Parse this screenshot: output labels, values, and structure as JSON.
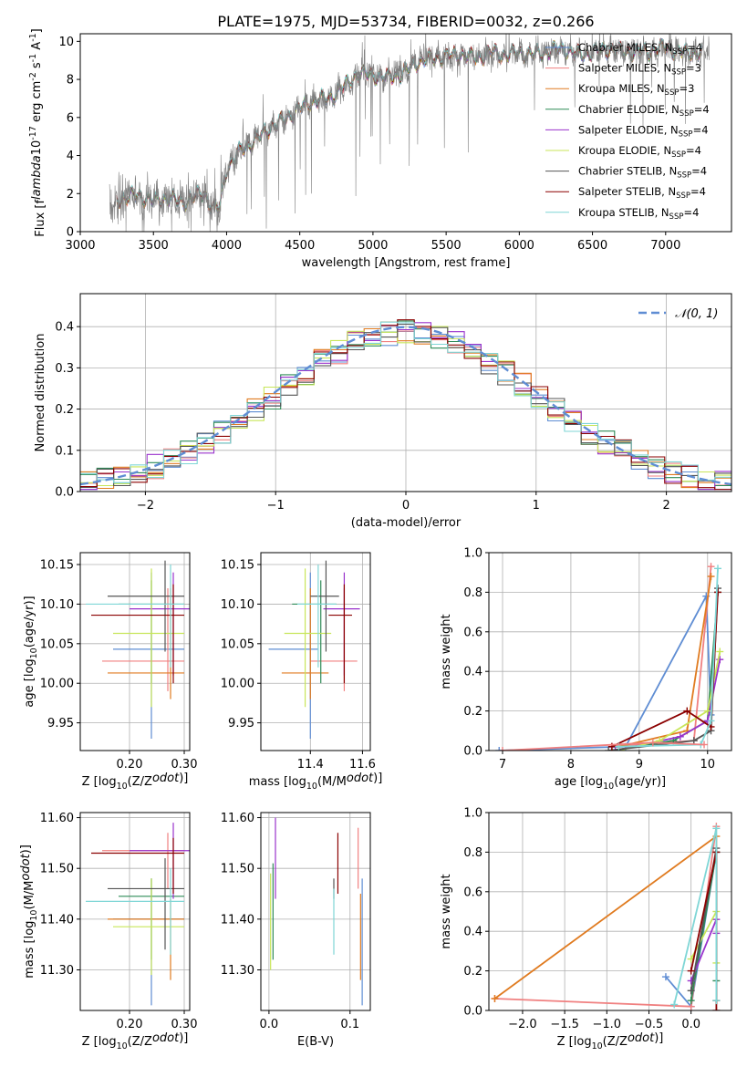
{
  "figure": {
    "title": "PLATE=1975, MJD=53734, FIBERID=0032, z=0.266"
  },
  "colors": {
    "Chabrier MILES": "#5f8dd3",
    "Salpeter MILES": "#f08080",
    "Kroupa MILES": "#e07b20",
    "Chabrier ELODIE": "#2e8b57",
    "Salpeter ELODIE": "#9932cc",
    "Kroupa ELODIE": "#c8e65a",
    "Chabrier STELIB": "#555555",
    "Salpeter STELIB": "#8b0000",
    "Kroupa STELIB": "#7fd6d6",
    "data": "#808080",
    "norm": "#5f8dd3",
    "grid": "#b0b0b0"
  },
  "chart_data": [
    {
      "id": "spectrum",
      "type": "line",
      "xlabel": "wavelength [Angstrom, rest frame]",
      "ylabel": "Flux [f$_\\lambda$10$^{-17}$ erg cm$^{-2}$ s$^{-1}$ A$^{-1}$]",
      "xlim": [
        3000,
        7450
      ],
      "ylim": [
        0,
        10.4
      ],
      "xticks": [
        3000,
        3500,
        4000,
        4500,
        5000,
        5500,
        6000,
        6500,
        7000
      ],
      "yticks": [
        0,
        2,
        4,
        6,
        8,
        10
      ],
      "grid": false,
      "legend_position": "top-right",
      "legend": [
        {
          "label": "Chabrier MILES, N",
          "sub": "SSP",
          "tail": "=4",
          "model": "Chabrier MILES"
        },
        {
          "label": "Salpeter MILES, N",
          "sub": "SSP",
          "tail": "=3",
          "model": "Salpeter MILES"
        },
        {
          "label": "Kroupa MILES, N",
          "sub": "SSP",
          "tail": "=3",
          "model": "Kroupa MILES"
        },
        {
          "label": "Chabrier ELODIE, N",
          "sub": "SSP",
          "tail": "=4",
          "model": "Chabrier ELODIE"
        },
        {
          "label": "Salpeter ELODIE, N",
          "sub": "SSP",
          "tail": "=4",
          "model": "Salpeter ELODIE"
        },
        {
          "label": "Kroupa ELODIE, N",
          "sub": "SSP",
          "tail": "=4",
          "model": "Kroupa ELODIE"
        },
        {
          "label": "Chabrier STELIB, N",
          "sub": "SSP",
          "tail": "=4",
          "model": "Chabrier STELIB"
        },
        {
          "label": "Salpeter STELIB, N",
          "sub": "SSP",
          "tail": "=4",
          "model": "Salpeter STELIB"
        },
        {
          "label": "Kroupa STELIB, N",
          "sub": "SSP",
          "tail": "=4",
          "model": "Kroupa STELIB"
        }
      ],
      "continuum": {
        "x": [
          3200,
          3300,
          3400,
          3500,
          3600,
          3700,
          3800,
          3850,
          3900,
          3950,
          4000,
          4100,
          4200,
          4300,
          4400,
          4500,
          4600,
          4700,
          4800,
          4900,
          5000,
          5100,
          5200,
          5300,
          5400,
          5500,
          5600,
          5700,
          5800,
          5900,
          6000,
          6100,
          6200,
          6300,
          6400,
          6500,
          6600,
          6700,
          6800,
          6900,
          7000,
          7100,
          7200
        ],
        "y": [
          1.5,
          1.8,
          1.9,
          1.6,
          1.8,
          1.5,
          1.9,
          2.0,
          1.3,
          1.2,
          3.3,
          4.3,
          4.8,
          5.5,
          5.9,
          6.5,
          6.9,
          7.0,
          7.6,
          8.3,
          8.2,
          8.1,
          8.3,
          8.9,
          9.1,
          9.2,
          9.3,
          9.1,
          9.4,
          9.3,
          9.4,
          9.3,
          9.5,
          9.6,
          9.3,
          9.4,
          9.6,
          9.5,
          9.4,
          9.5,
          9.7,
          9.4,
          9.4
        ]
      },
      "data_x_range": [
        3200,
        7300
      ],
      "model_x_range": [
        3250,
        7250
      ]
    },
    {
      "id": "residuals",
      "type": "line",
      "xlabel": "(data-model)/error",
      "ylabel": "Normed distribution",
      "xlim": [
        -2.5,
        2.5
      ],
      "ylim": [
        0,
        0.48
      ],
      "xticks": [
        -2,
        -1,
        0,
        1,
        2
      ],
      "yticks": [
        0,
        0.1,
        0.2,
        0.3,
        0.4
      ],
      "grid": true,
      "legend_position": "top-right",
      "legend": [
        {
          "label": "𝒩(0, 1)",
          "style": "dashed"
        }
      ],
      "bins": 39,
      "hist_range": [
        -2.5,
        2.5
      ]
    },
    {
      "id": "age-vs-Z",
      "type": "scatter",
      "xlabel": "Z [log$_{10}$(Z/Z$_\\odot$)]",
      "ylabel": "age [log$_{10}$(age/yr)]",
      "xlim": [
        0.11,
        0.31
      ],
      "ylim": [
        9.915,
        10.165
      ],
      "xticks": [
        0.2,
        0.3
      ],
      "yticks": [
        9.95,
        10.0,
        10.05,
        10.1,
        10.15
      ],
      "grid": true,
      "points": [
        {
          "model": "Chabrier MILES",
          "x": 0.24,
          "y": 10.043,
          "xerr": [
            0.17,
            0.3
          ],
          "yerr": [
            9.93,
            10.14
          ]
        },
        {
          "model": "Salpeter MILES",
          "x": 0.27,
          "y": 10.028,
          "xerr": [
            0.15,
            0.3
          ],
          "yerr": [
            9.99,
            10.12
          ]
        },
        {
          "model": "Kroupa MILES",
          "x": 0.275,
          "y": 10.013,
          "xerr": [
            0.16,
            0.3
          ],
          "yerr": [
            9.98,
            10.12
          ]
        },
        {
          "model": "Chabrier ELODIE",
          "x": 0.24,
          "y": 10.1,
          "xerr": [
            0.18,
            0.3
          ],
          "yerr": [
            10.0,
            10.13
          ]
        },
        {
          "model": "Salpeter ELODIE",
          "x": 0.28,
          "y": 10.094,
          "xerr": [
            0.2,
            0.31
          ],
          "yerr": [
            10.01,
            10.14
          ]
        },
        {
          "model": "Kroupa ELODIE",
          "x": 0.24,
          "y": 10.063,
          "xerr": [
            0.17,
            0.3
          ],
          "yerr": [
            9.97,
            10.145
          ]
        },
        {
          "model": "Chabrier STELIB",
          "x": 0.265,
          "y": 10.11,
          "xerr": [
            0.16,
            0.3
          ],
          "yerr": [
            10.04,
            10.155
          ]
        },
        {
          "model": "Salpeter STELIB",
          "x": 0.28,
          "y": 10.086,
          "xerr": [
            0.13,
            0.3
          ],
          "yerr": [
            10.0,
            10.125
          ]
        },
        {
          "model": "Kroupa STELIB",
          "x": 0.275,
          "y": 10.1,
          "xerr": [
            0.12,
            0.3
          ],
          "yerr": [
            10.02,
            10.15
          ]
        }
      ]
    },
    {
      "id": "age-vs-mass",
      "type": "scatter",
      "xlabel": "mass [log$_{10}$(M/M$_\\odot$)]",
      "ylabel": "",
      "xlim": [
        11.21,
        11.63
      ],
      "ylim": [
        9.915,
        10.165
      ],
      "xticks": [
        11.4,
        11.6
      ],
      "yticks": [
        9.95,
        10.0,
        10.05,
        10.1,
        10.15
      ],
      "grid": true,
      "points": [
        {
          "model": "Chabrier MILES",
          "x": 11.4,
          "y": 10.043,
          "xerr": [
            11.24,
            11.43
          ],
          "yerr": [
            9.93,
            10.14
          ]
        },
        {
          "model": "Salpeter MILES",
          "x": 11.53,
          "y": 10.028,
          "xerr": [
            11.4,
            11.58
          ],
          "yerr": [
            9.99,
            10.12
          ]
        },
        {
          "model": "Kroupa MILES",
          "x": 11.4,
          "y": 10.013,
          "xerr": [
            11.29,
            11.47
          ],
          "yerr": [
            9.98,
            10.12
          ]
        },
        {
          "model": "Chabrier ELODIE",
          "x": 11.44,
          "y": 10.1,
          "xerr": [
            11.33,
            11.5
          ],
          "yerr": [
            10.0,
            10.13
          ]
        },
        {
          "model": "Salpeter ELODIE",
          "x": 11.53,
          "y": 10.094,
          "xerr": [
            11.45,
            11.59
          ],
          "yerr": [
            10.01,
            10.14
          ]
        },
        {
          "model": "Kroupa ELODIE",
          "x": 11.38,
          "y": 10.063,
          "xerr": [
            11.3,
            11.48
          ],
          "yerr": [
            9.97,
            10.145
          ]
        },
        {
          "model": "Chabrier STELIB",
          "x": 11.46,
          "y": 10.11,
          "xerr": [
            11.4,
            11.51
          ],
          "yerr": [
            10.04,
            10.155
          ]
        },
        {
          "model": "Salpeter STELIB",
          "x": 11.53,
          "y": 10.086,
          "xerr": [
            11.47,
            11.56
          ],
          "yerr": [
            10.0,
            10.125
          ]
        },
        {
          "model": "Kroupa STELIB",
          "x": 11.43,
          "y": 10.1,
          "xerr": [
            11.35,
            11.5
          ],
          "yerr": [
            10.02,
            10.15
          ]
        }
      ]
    },
    {
      "id": "weight-vs-age",
      "type": "line",
      "xlabel": "age [log$_{10}$(age/yr)]",
      "ylabel": "mass weight",
      "xlim": [
        6.8,
        10.35
      ],
      "ylim": [
        0,
        1
      ],
      "xticks": [
        7,
        8,
        9,
        10
      ],
      "yticks": [
        0,
        0.2,
        0.4,
        0.6,
        0.8,
        1.0
      ],
      "grid": true,
      "series": [
        {
          "model": "Chabrier MILES",
          "x": [
            6.95,
            8.8,
            9.98,
            10.05
          ],
          "y": [
            0.0,
            0.02,
            0.78,
            0.18
          ]
        },
        {
          "model": "Salpeter MILES",
          "x": [
            8.6,
            9.8,
            10.05
          ],
          "y": [
            0.02,
            0.05,
            0.93
          ]
        },
        {
          "model": "Kroupa MILES",
          "x": [
            8.7,
            9.7,
            10.05
          ],
          "y": [
            0.02,
            0.1,
            0.88
          ]
        },
        {
          "model": "Chabrier ELODIE",
          "x": [
            8.6,
            9.5,
            10.0,
            10.15
          ],
          "y": [
            0.0,
            0.05,
            0.15,
            0.8
          ]
        },
        {
          "model": "Salpeter ELODIE",
          "x": [
            8.65,
            9.6,
            10.0,
            10.18
          ],
          "y": [
            0.0,
            0.07,
            0.15,
            0.46
          ]
        },
        {
          "model": "Kroupa ELODIE",
          "x": [
            8.7,
            9.3,
            10.0,
            10.18
          ],
          "y": [
            0.0,
            0.05,
            0.2,
            0.5
          ]
        },
        {
          "model": "Chabrier STELIB",
          "x": [
            8.55,
            9.8,
            10.05,
            10.15
          ],
          "y": [
            0.0,
            0.05,
            0.1,
            0.82
          ]
        },
        {
          "model": "Salpeter STELIB",
          "x": [
            8.6,
            9.7,
            10.05,
            10.15
          ],
          "y": [
            0.02,
            0.2,
            0.12,
            0.8
          ]
        },
        {
          "model": "Kroupa STELIB",
          "x": [
            8.7,
            9.9,
            10.05,
            10.15
          ],
          "y": [
            0.02,
            0.03,
            0.15,
            0.92
          ]
        },
        {
          "model": "Salpeter MILES",
          "x": [
            7.0,
            9.2,
            9.95
          ],
          "y": [
            0.0,
            0.04,
            0.03
          ]
        }
      ]
    },
    {
      "id": "mass-vs-Z",
      "type": "scatter",
      "xlabel": "Z [log$_{10}$(Z/Z$_\\odot$)]",
      "ylabel": "mass [log$_{10}$(M/M$_\\odot$)]",
      "xlim": [
        0.11,
        0.31
      ],
      "ylim": [
        11.22,
        11.61
      ],
      "xticks": [
        0.2,
        0.3
      ],
      "yticks": [
        11.3,
        11.4,
        11.5,
        11.6
      ],
      "grid": true,
      "points": [
        {
          "model": "Chabrier MILES",
          "x": 0.24,
          "y": 11.4,
          "xerr": [
            0.17,
            0.3
          ],
          "yerr": [
            11.23,
            11.48
          ]
        },
        {
          "model": "Salpeter MILES",
          "x": 0.27,
          "y": 11.535,
          "xerr": [
            0.15,
            0.3
          ],
          "yerr": [
            11.46,
            11.57
          ]
        },
        {
          "model": "Kroupa MILES",
          "x": 0.275,
          "y": 11.4,
          "xerr": [
            0.16,
            0.3
          ],
          "yerr": [
            11.28,
            11.44
          ]
        },
        {
          "model": "Chabrier ELODIE",
          "x": 0.24,
          "y": 11.445,
          "xerr": [
            0.18,
            0.3
          ],
          "yerr": [
            11.32,
            11.48
          ]
        },
        {
          "model": "Salpeter ELODIE",
          "x": 0.28,
          "y": 11.535,
          "xerr": [
            0.2,
            0.31
          ],
          "yerr": [
            11.44,
            11.59
          ]
        },
        {
          "model": "Kroupa ELODIE",
          "x": 0.24,
          "y": 11.385,
          "xerr": [
            0.17,
            0.3
          ],
          "yerr": [
            11.29,
            11.48
          ]
        },
        {
          "model": "Chabrier STELIB",
          "x": 0.265,
          "y": 11.46,
          "xerr": [
            0.16,
            0.3
          ],
          "yerr": [
            11.34,
            11.52
          ]
        },
        {
          "model": "Salpeter STELIB",
          "x": 0.28,
          "y": 11.53,
          "xerr": [
            0.13,
            0.3
          ],
          "yerr": [
            11.45,
            11.56
          ]
        },
        {
          "model": "Kroupa STELIB",
          "x": 0.275,
          "y": 11.435,
          "xerr": [
            0.12,
            0.3
          ],
          "yerr": [
            11.33,
            11.5
          ]
        }
      ]
    },
    {
      "id": "mass-vs-ebv",
      "type": "scatter",
      "xlabel": "E(B-V)",
      "ylabel": "",
      "xlim": [
        -0.01,
        0.125
      ],
      "ylim": [
        11.22,
        11.61
      ],
      "xticks": [
        0.0,
        0.1
      ],
      "yticks": [
        11.3,
        11.4,
        11.5,
        11.6
      ],
      "grid": true,
      "points": [
        {
          "model": "Chabrier MILES",
          "x": 0.115,
          "y": 11.4,
          "yerr": [
            11.23,
            11.48
          ]
        },
        {
          "model": "Salpeter MILES",
          "x": 0.11,
          "y": 11.535,
          "yerr": [
            11.46,
            11.58
          ]
        },
        {
          "model": "Kroupa MILES",
          "x": 0.113,
          "y": 11.4,
          "yerr": [
            11.28,
            11.45
          ]
        },
        {
          "model": "Chabrier ELODIE",
          "x": 0.005,
          "y": 11.445,
          "yerr": [
            11.32,
            11.51
          ]
        },
        {
          "model": "Salpeter ELODIE",
          "x": 0.008,
          "y": 11.535,
          "yerr": [
            11.44,
            11.6
          ]
        },
        {
          "model": "Kroupa ELODIE",
          "x": 0.002,
          "y": 11.385,
          "yerr": [
            11.3,
            11.49
          ]
        },
        {
          "model": "Chabrier STELIB",
          "x": 0.08,
          "y": 11.46,
          "yerr": [
            11.44,
            11.48
          ]
        },
        {
          "model": "Salpeter STELIB",
          "x": 0.085,
          "y": 11.53,
          "yerr": [
            11.45,
            11.57
          ]
        },
        {
          "model": "Kroupa STELIB",
          "x": 0.08,
          "y": 11.435,
          "yerr": [
            11.33,
            11.46
          ]
        }
      ]
    },
    {
      "id": "weight-vs-Z",
      "type": "line",
      "xlabel": "Z [log$_{10}$(Z/Z$_\\odot$)]",
      "ylabel": "mass weight",
      "xlim": [
        -2.4,
        0.48
      ],
      "ylim": [
        0,
        1
      ],
      "xticks": [
        -2.0,
        -1.5,
        -1.0,
        -0.5,
        0.0
      ],
      "yticks": [
        0,
        0.2,
        0.4,
        0.6,
        0.8,
        1.0
      ],
      "grid": true,
      "series": [
        {
          "model": "Chabrier MILES",
          "x": [
            -0.3,
            0.0,
            0.3
          ],
          "y": [
            0.17,
            0.02,
            0.8
          ]
        },
        {
          "model": "Salpeter MILES",
          "x": [
            -2.33,
            0.0,
            0.3
          ],
          "y": [
            0.06,
            0.02,
            0.93
          ]
        },
        {
          "model": "Kroupa MILES",
          "x": [
            -2.33,
            0.3,
            0.3
          ],
          "y": [
            0.06,
            0.88,
            0.05
          ]
        },
        {
          "model": "Chabrier ELODIE",
          "x": [
            0.0,
            0.3,
            0.3
          ],
          "y": [
            0.05,
            0.8,
            0.15
          ]
        },
        {
          "model": "Salpeter ELODIE",
          "x": [
            0.0,
            0.3,
            0.3
          ],
          "y": [
            0.15,
            0.46,
            0.39
          ]
        },
        {
          "model": "Kroupa ELODIE",
          "x": [
            0.0,
            0.3,
            0.3
          ],
          "y": [
            0.26,
            0.5,
            0.24
          ]
        },
        {
          "model": "Chabrier STELIB",
          "x": [
            0.0,
            0.3,
            0.3
          ],
          "y": [
            0.1,
            0.82,
            0.05
          ]
        },
        {
          "model": "Salpeter STELIB",
          "x": [
            0.0,
            0.3,
            0.3
          ],
          "y": [
            0.2,
            0.8,
            0.0
          ]
        },
        {
          "model": "Kroupa STELIB",
          "x": [
            -0.2,
            0.3,
            0.3
          ],
          "y": [
            0.03,
            0.92,
            0.05
          ]
        }
      ]
    }
  ]
}
